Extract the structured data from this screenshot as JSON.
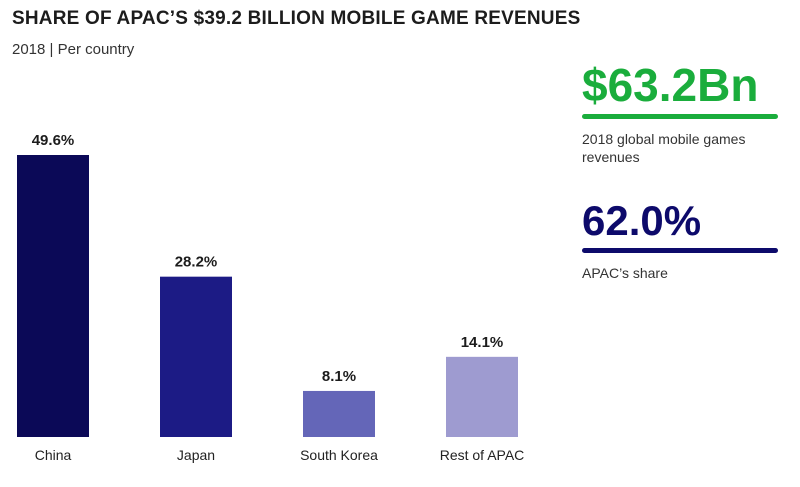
{
  "header": {
    "title": "SHARE OF APAC’S $39.2 BILLION MOBILE GAME REVENUES",
    "subtitle": "2018 | Per country"
  },
  "stats": [
    {
      "value": "$63.2Bn",
      "caption": "2018 global mobile games revenues",
      "color": "#1aad3c"
    },
    {
      "value": "62.0%",
      "caption": "APAC’s share",
      "color": "#0d0a6b"
    }
  ],
  "chart_data": {
    "type": "bar",
    "title": "SHARE OF APAC’S $39.2 BILLION MOBILE GAME REVENUES",
    "subtitle": "2018 | Per country",
    "categories": [
      "China",
      "Japan",
      "South Korea",
      "Rest of APAC"
    ],
    "values": [
      49.6,
      28.2,
      8.1,
      14.1
    ],
    "data_labels": [
      "49.6%",
      "28.2%",
      "8.1%",
      "14.1%"
    ],
    "colors": [
      "#0b0957",
      "#1c1b85",
      "#6466b8",
      "#9e9bd0"
    ],
    "xlabel": "",
    "ylabel": "",
    "ylim": [
      0,
      49.6
    ],
    "grid": false,
    "legend": "none"
  }
}
